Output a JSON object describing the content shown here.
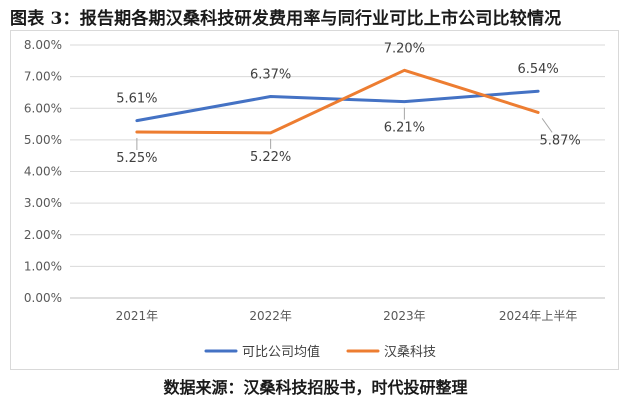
{
  "header": {
    "title": "图表 3：报告期各期汉桑科技研发费用率与同行业可比上市公司比较情况"
  },
  "footer": {
    "source": "数据来源：汉桑科技招股书，时代投研整理"
  },
  "chart_data": {
    "type": "line",
    "categories": [
      "2021年",
      "2022年",
      "2023年",
      "2024年上半年"
    ],
    "ylim": [
      0,
      8
    ],
    "yticks": [
      "0.00%",
      "1.00%",
      "2.00%",
      "3.00%",
      "4.00%",
      "5.00%",
      "6.00%",
      "7.00%",
      "8.00%"
    ],
    "grid": true,
    "legend": "bottom",
    "series": [
      {
        "name": "可比公司均值",
        "color": "#4472c4",
        "values": [
          5.61,
          6.37,
          6.21,
          6.54
        ],
        "labels": [
          "5.61%",
          "6.37%",
          "6.21%",
          "6.54%"
        ]
      },
      {
        "name": "汉桑科技",
        "color": "#ed7d31",
        "values": [
          5.25,
          5.22,
          7.2,
          5.87
        ],
        "labels": [
          "5.25%",
          "5.22%",
          "7.20%",
          "5.87%"
        ]
      }
    ]
  }
}
